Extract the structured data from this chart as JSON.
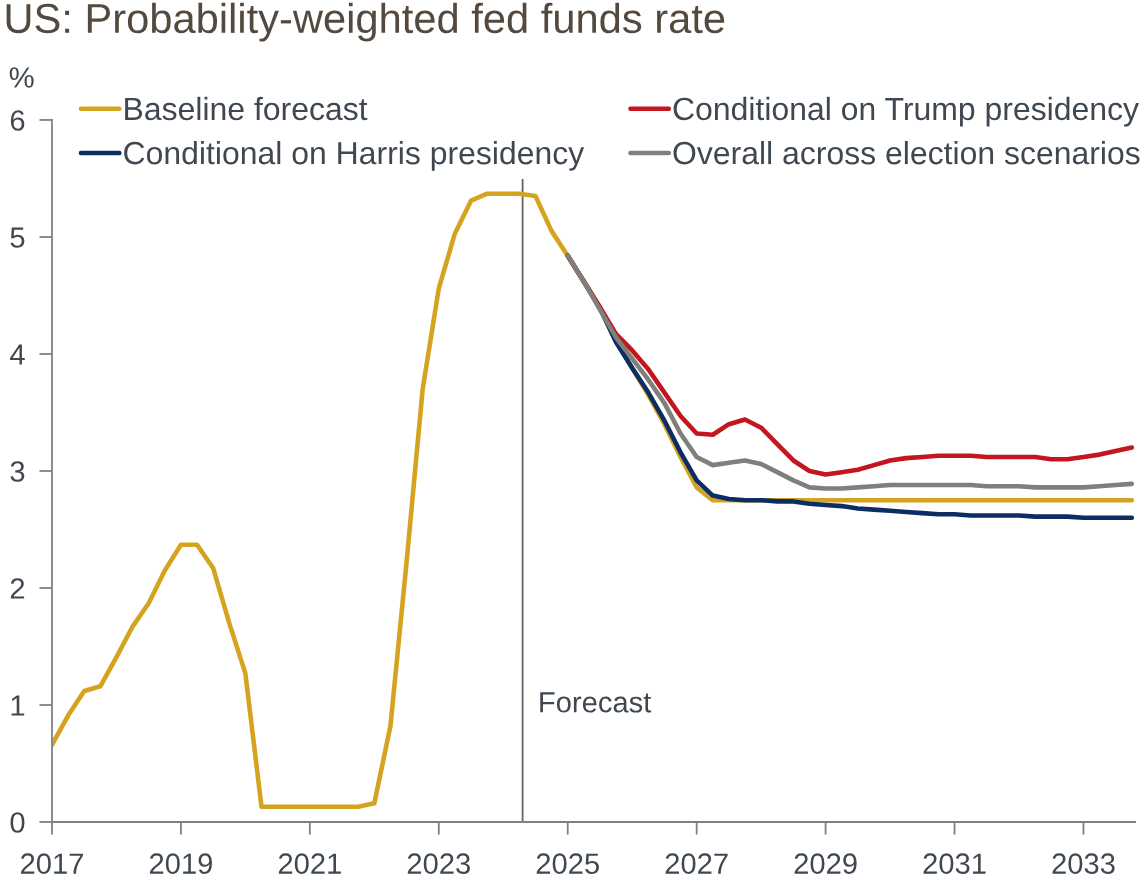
{
  "chart_data": {
    "type": "line",
    "title": "US: Probability-weighted fed funds rate",
    "ylabel": "%",
    "xlim": [
      2017,
      2033.8
    ],
    "xticks": [
      2017,
      2019,
      2021,
      2023,
      2025,
      2027,
      2029,
      2031,
      2033
    ],
    "ylim": [
      0,
      6
    ],
    "yticks": [
      0,
      1,
      2,
      3,
      4,
      5,
      6
    ],
    "legend": "top",
    "line_style": "solid",
    "ref_lines": [
      {
        "axis": "x",
        "value": 2024.3,
        "label": "Forecast",
        "color": "#5f6368"
      }
    ],
    "series": [
      {
        "name": "Baseline forecast",
        "color": "#d4a31f",
        "x": [
          2017,
          2017.25,
          2017.5,
          2017.75,
          2018,
          2018.25,
          2018.5,
          2018.75,
          2019,
          2019.25,
          2019.5,
          2019.75,
          2020,
          2020.25,
          2020.5,
          2020.75,
          2021,
          2021.25,
          2021.5,
          2021.75,
          2022,
          2022.25,
          2022.5,
          2022.75,
          2023,
          2023.25,
          2023.5,
          2023.75,
          2024,
          2024.25,
          2024.5,
          2024.75,
          2025,
          2025.25,
          2025.5,
          2025.75,
          2026,
          2026.25,
          2026.5,
          2026.75,
          2027,
          2027.25,
          2027.5,
          2027.75,
          2028,
          2028.25,
          2028.5,
          2028.75,
          2029,
          2029.25,
          2029.5,
          2029.75,
          2030,
          2030.25,
          2030.5,
          2030.75,
          2031,
          2031.25,
          2031.5,
          2031.75,
          2032,
          2032.25,
          2032.5,
          2032.75,
          2033,
          2033.25,
          2033.5,
          2033.75
        ],
        "values": [
          0.66,
          0.91,
          1.12,
          1.16,
          1.41,
          1.67,
          1.87,
          2.15,
          2.37,
          2.37,
          2.17,
          1.7,
          1.27,
          0.13,
          0.13,
          0.13,
          0.13,
          0.13,
          0.13,
          0.13,
          0.16,
          0.82,
          2.22,
          3.7,
          4.56,
          5.03,
          5.31,
          5.37,
          5.37,
          5.37,
          5.35,
          5.05,
          4.84,
          4.62,
          4.4,
          4.12,
          3.88,
          3.65,
          3.4,
          3.12,
          2.86,
          2.75,
          2.75,
          2.75,
          2.75,
          2.75,
          2.75,
          2.75,
          2.75,
          2.75,
          2.75,
          2.75,
          2.75,
          2.75,
          2.75,
          2.75,
          2.75,
          2.75,
          2.75,
          2.75,
          2.75,
          2.75,
          2.75,
          2.75,
          2.75,
          2.75,
          2.75,
          2.75
        ]
      },
      {
        "name": "Conditional on Harris presidency",
        "color": "#0b2d63",
        "x": [
          2025,
          2025.25,
          2025.5,
          2025.75,
          2026,
          2026.25,
          2026.5,
          2026.75,
          2027,
          2027.25,
          2027.5,
          2027.75,
          2028,
          2028.25,
          2028.5,
          2028.75,
          2029,
          2029.25,
          2029.5,
          2029.75,
          2030,
          2030.25,
          2030.5,
          2030.75,
          2031,
          2031.25,
          2031.5,
          2031.75,
          2032,
          2032.25,
          2032.5,
          2032.75,
          2033,
          2033.25,
          2033.5,
          2033.75
        ],
        "values": [
          4.84,
          4.62,
          4.39,
          4.1,
          3.88,
          3.67,
          3.43,
          3.16,
          2.92,
          2.79,
          2.76,
          2.75,
          2.75,
          2.74,
          2.74,
          2.72,
          2.71,
          2.7,
          2.68,
          2.67,
          2.66,
          2.65,
          2.64,
          2.63,
          2.63,
          2.62,
          2.62,
          2.62,
          2.62,
          2.61,
          2.61,
          2.61,
          2.6,
          2.6,
          2.6,
          2.6
        ]
      },
      {
        "name": "Conditional on Trump presidency",
        "color": "#c3161f",
        "x": [
          2025,
          2025.25,
          2025.5,
          2025.75,
          2026,
          2026.25,
          2026.5,
          2026.75,
          2027,
          2027.25,
          2027.5,
          2027.75,
          2028,
          2028.25,
          2028.5,
          2028.75,
          2029,
          2029.25,
          2029.5,
          2029.75,
          2030,
          2030.25,
          2030.5,
          2030.75,
          2031,
          2031.25,
          2031.5,
          2031.75,
          2032,
          2032.25,
          2032.5,
          2032.75,
          2033,
          2033.25,
          2033.5,
          2033.75
        ],
        "values": [
          4.84,
          4.62,
          4.4,
          4.17,
          4.03,
          3.87,
          3.67,
          3.47,
          3.32,
          3.31,
          3.4,
          3.44,
          3.37,
          3.23,
          3.09,
          3.0,
          2.97,
          2.99,
          3.01,
          3.05,
          3.09,
          3.11,
          3.12,
          3.13,
          3.13,
          3.13,
          3.12,
          3.12,
          3.12,
          3.12,
          3.1,
          3.1,
          3.12,
          3.14,
          3.17,
          3.2
        ]
      },
      {
        "name": "Overall across election scenarios",
        "color": "#7f7f7b",
        "x": [
          2025,
          2025.25,
          2025.5,
          2025.75,
          2026,
          2026.25,
          2026.5,
          2026.75,
          2027,
          2027.25,
          2027.5,
          2027.75,
          2028,
          2028.25,
          2028.5,
          2028.75,
          2029,
          2029.25,
          2029.5,
          2029.75,
          2030,
          2030.25,
          2030.5,
          2030.75,
          2031,
          2031.25,
          2031.5,
          2031.75,
          2032,
          2032.25,
          2032.5,
          2032.75,
          2033,
          2033.25,
          2033.5,
          2033.75
        ],
        "values": [
          4.84,
          4.62,
          4.38,
          4.14,
          3.96,
          3.78,
          3.58,
          3.32,
          3.12,
          3.05,
          3.07,
          3.09,
          3.06,
          2.99,
          2.92,
          2.86,
          2.85,
          2.85,
          2.86,
          2.87,
          2.88,
          2.88,
          2.88,
          2.88,
          2.88,
          2.88,
          2.87,
          2.87,
          2.87,
          2.86,
          2.86,
          2.86,
          2.86,
          2.87,
          2.88,
          2.89
        ]
      }
    ]
  }
}
